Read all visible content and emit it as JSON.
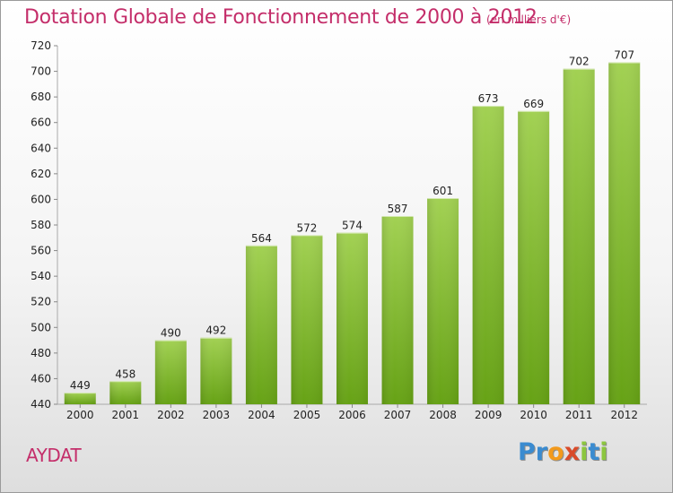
{
  "title": "Dotation Globale de Fonctionnement de 2000 à 2012",
  "subtitle": "(en milliers d'€)",
  "commune": "AYDAT",
  "logo": {
    "text": "Proxiti",
    "letters": [
      {
        "char": "P",
        "color": "#3a8bd0"
      },
      {
        "char": "r",
        "color": "#3a8bd0"
      },
      {
        "char": "o",
        "color": "#f39a1c"
      },
      {
        "char": "x",
        "color": "#d94b2a"
      },
      {
        "char": "i",
        "color": "#8cc63f"
      },
      {
        "char": "t",
        "color": "#3a8bd0"
      },
      {
        "char": "i",
        "color": "#8cc63f"
      }
    ]
  },
  "colors": {
    "bar_top": "#a2d153",
    "bar_bottom": "#66a215",
    "title": "#c42e6a",
    "axis_text": "#222222"
  },
  "chart_data": {
    "type": "bar",
    "title": "Dotation Globale de Fonctionnement de 2000 à 2012",
    "subtitle": "(en milliers d'€)",
    "xlabel": "",
    "ylabel": "",
    "categories": [
      "2000",
      "2001",
      "2002",
      "2003",
      "2004",
      "2005",
      "2006",
      "2007",
      "2008",
      "2009",
      "2010",
      "2011",
      "2012"
    ],
    "values": [
      449,
      458,
      490,
      492,
      564,
      572,
      574,
      587,
      601,
      673,
      669,
      702,
      707
    ],
    "data_labels": [
      "449",
      "458",
      "490",
      "492",
      "564",
      "572",
      "574",
      "587",
      "601",
      "673",
      "669",
      "702",
      "707"
    ],
    "ylim": [
      440,
      720
    ],
    "yticks": [
      440,
      460,
      480,
      500,
      520,
      540,
      560,
      580,
      600,
      620,
      640,
      660,
      680,
      700,
      720
    ],
    "grid": false,
    "legend": "none"
  }
}
